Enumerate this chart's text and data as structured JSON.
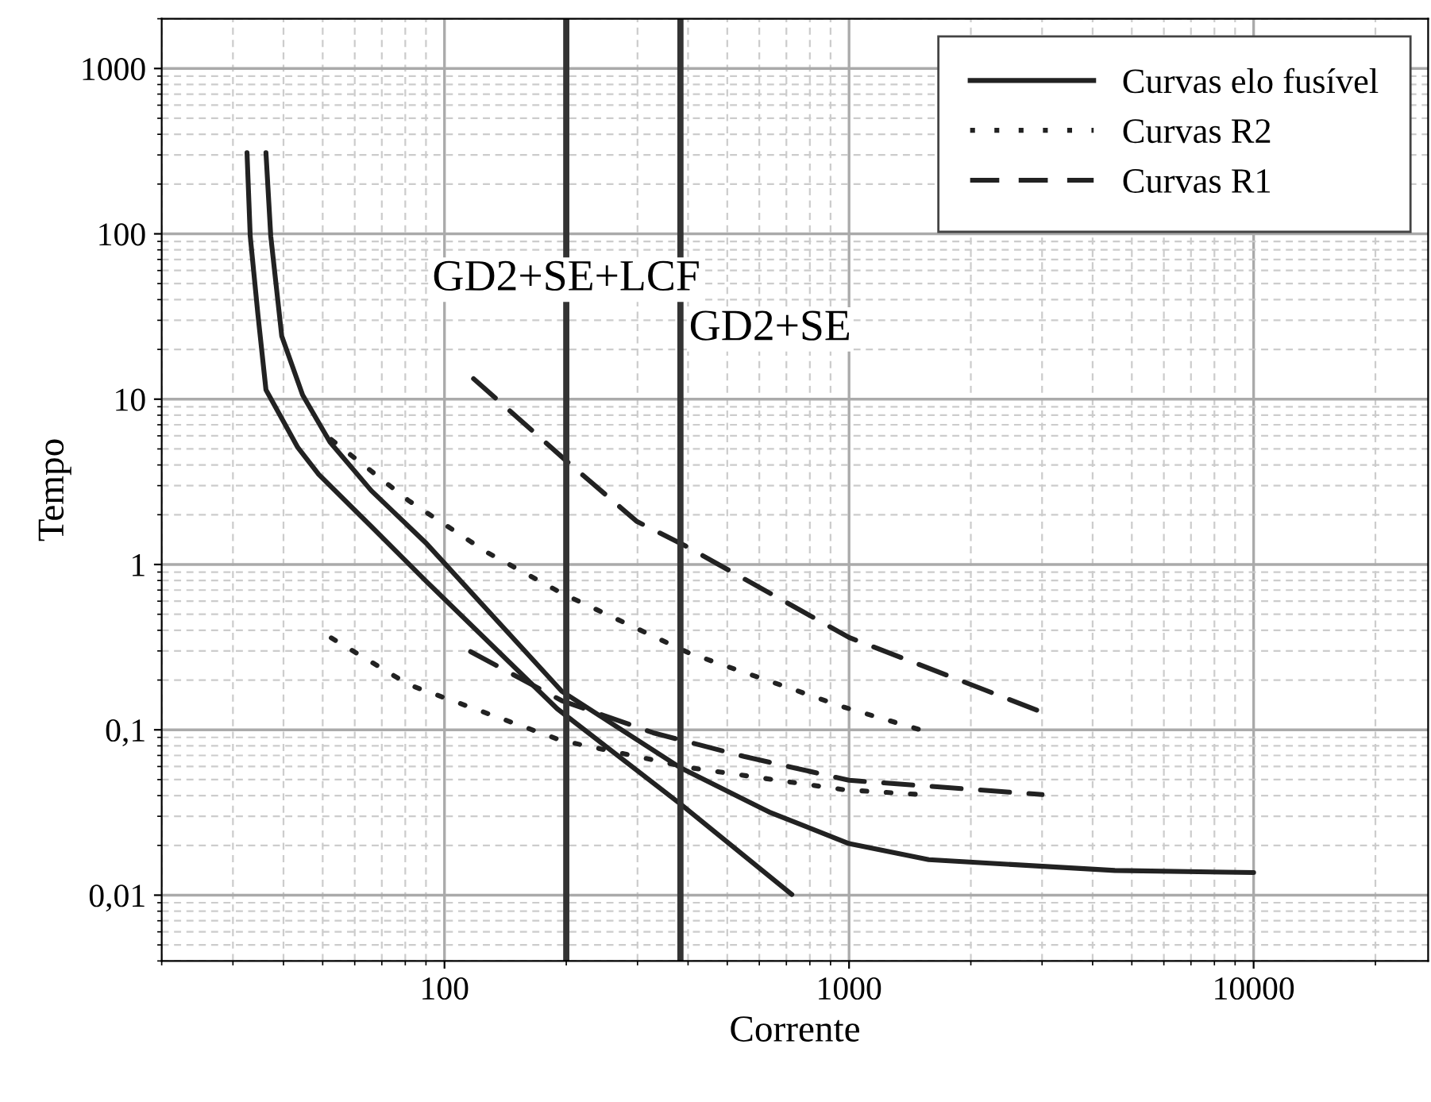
{
  "chart_data": {
    "type": "line",
    "xlabel": "Corrente",
    "ylabel": "Tempo",
    "log": "xy",
    "xlim": [
      20,
      27000
    ],
    "ylim": [
      0.004,
      2000
    ],
    "xticks": [
      100,
      1000,
      10000
    ],
    "yticks": [
      {
        "value": 0.01,
        "label": "0,01"
      },
      {
        "value": 0.1,
        "label": "0,1"
      },
      1,
      10,
      100,
      1000
    ],
    "grid": true,
    "legend": "top right",
    "marker": "none",
    "series": [
      {
        "name": "Curvas elo fusível",
        "color": "#222222",
        "line_style": "solid",
        "x": [
          36.2,
          37.2,
          39.6,
          44.6,
          52.1,
          65.9,
          89.7,
          195,
          383,
          635,
          1000,
          1574,
          4540,
          10000
        ],
        "values": [
          310,
          97,
          24.1,
          10.6,
          5.5,
          2.8,
          1.36,
          0.171,
          0.059,
          0.0318,
          0.0205,
          0.0164,
          0.0141,
          0.0137
        ]
      },
      {
        "color": "#222222",
        "line_style": "solid",
        "x": [
          32.5,
          33.1,
          34.6,
          36.2,
          43.4,
          48.9,
          65.9,
          89.7,
          190,
          383,
          722
        ],
        "values": [
          310,
          97,
          32.1,
          11.4,
          5.1,
          3.5,
          1.7,
          0.8,
          0.134,
          0.0356,
          0.0101
        ]
      },
      {
        "name": "Curvas R2",
        "color": "#222222",
        "line_style": "dotted",
        "x": [
          52.5,
          81.8,
          127,
          195,
          404,
          973,
          1500
        ],
        "values": [
          5.7,
          2.42,
          1.19,
          0.67,
          0.29,
          0.137,
          0.1
        ]
      },
      {
        "color": "#222222",
        "line_style": "dotted",
        "x": [
          52.5,
          81.8,
          195,
          404,
          973,
          1500
        ],
        "values": [
          0.36,
          0.187,
          0.086,
          0.059,
          0.0434,
          0.0406
        ]
      },
      {
        "name": "Curvas R1",
        "color": "#222222",
        "line_style": "dashed",
        "x": [
          118,
          203,
          299,
          393,
          1000,
          3000
        ],
        "values": [
          13.3,
          4.1,
          1.82,
          1.3,
          0.362,
          0.128
        ]
      },
      {
        "color": "#222222",
        "line_style": "dashed",
        "x": [
          116,
          195,
          328,
          550,
          1000,
          3000
        ],
        "values": [
          0.297,
          0.15,
          0.096,
          0.069,
          0.0495,
          0.0406
        ]
      }
    ],
    "ref_lines": [
      {
        "axis": "x",
        "value": 200,
        "label": "GD2+SE+LCF",
        "color": "#333333",
        "line_style": "solid"
      },
      {
        "axis": "x",
        "value": 383,
        "label": "GD2+SE",
        "color": "#333333",
        "line_style": "solid"
      }
    ]
  }
}
